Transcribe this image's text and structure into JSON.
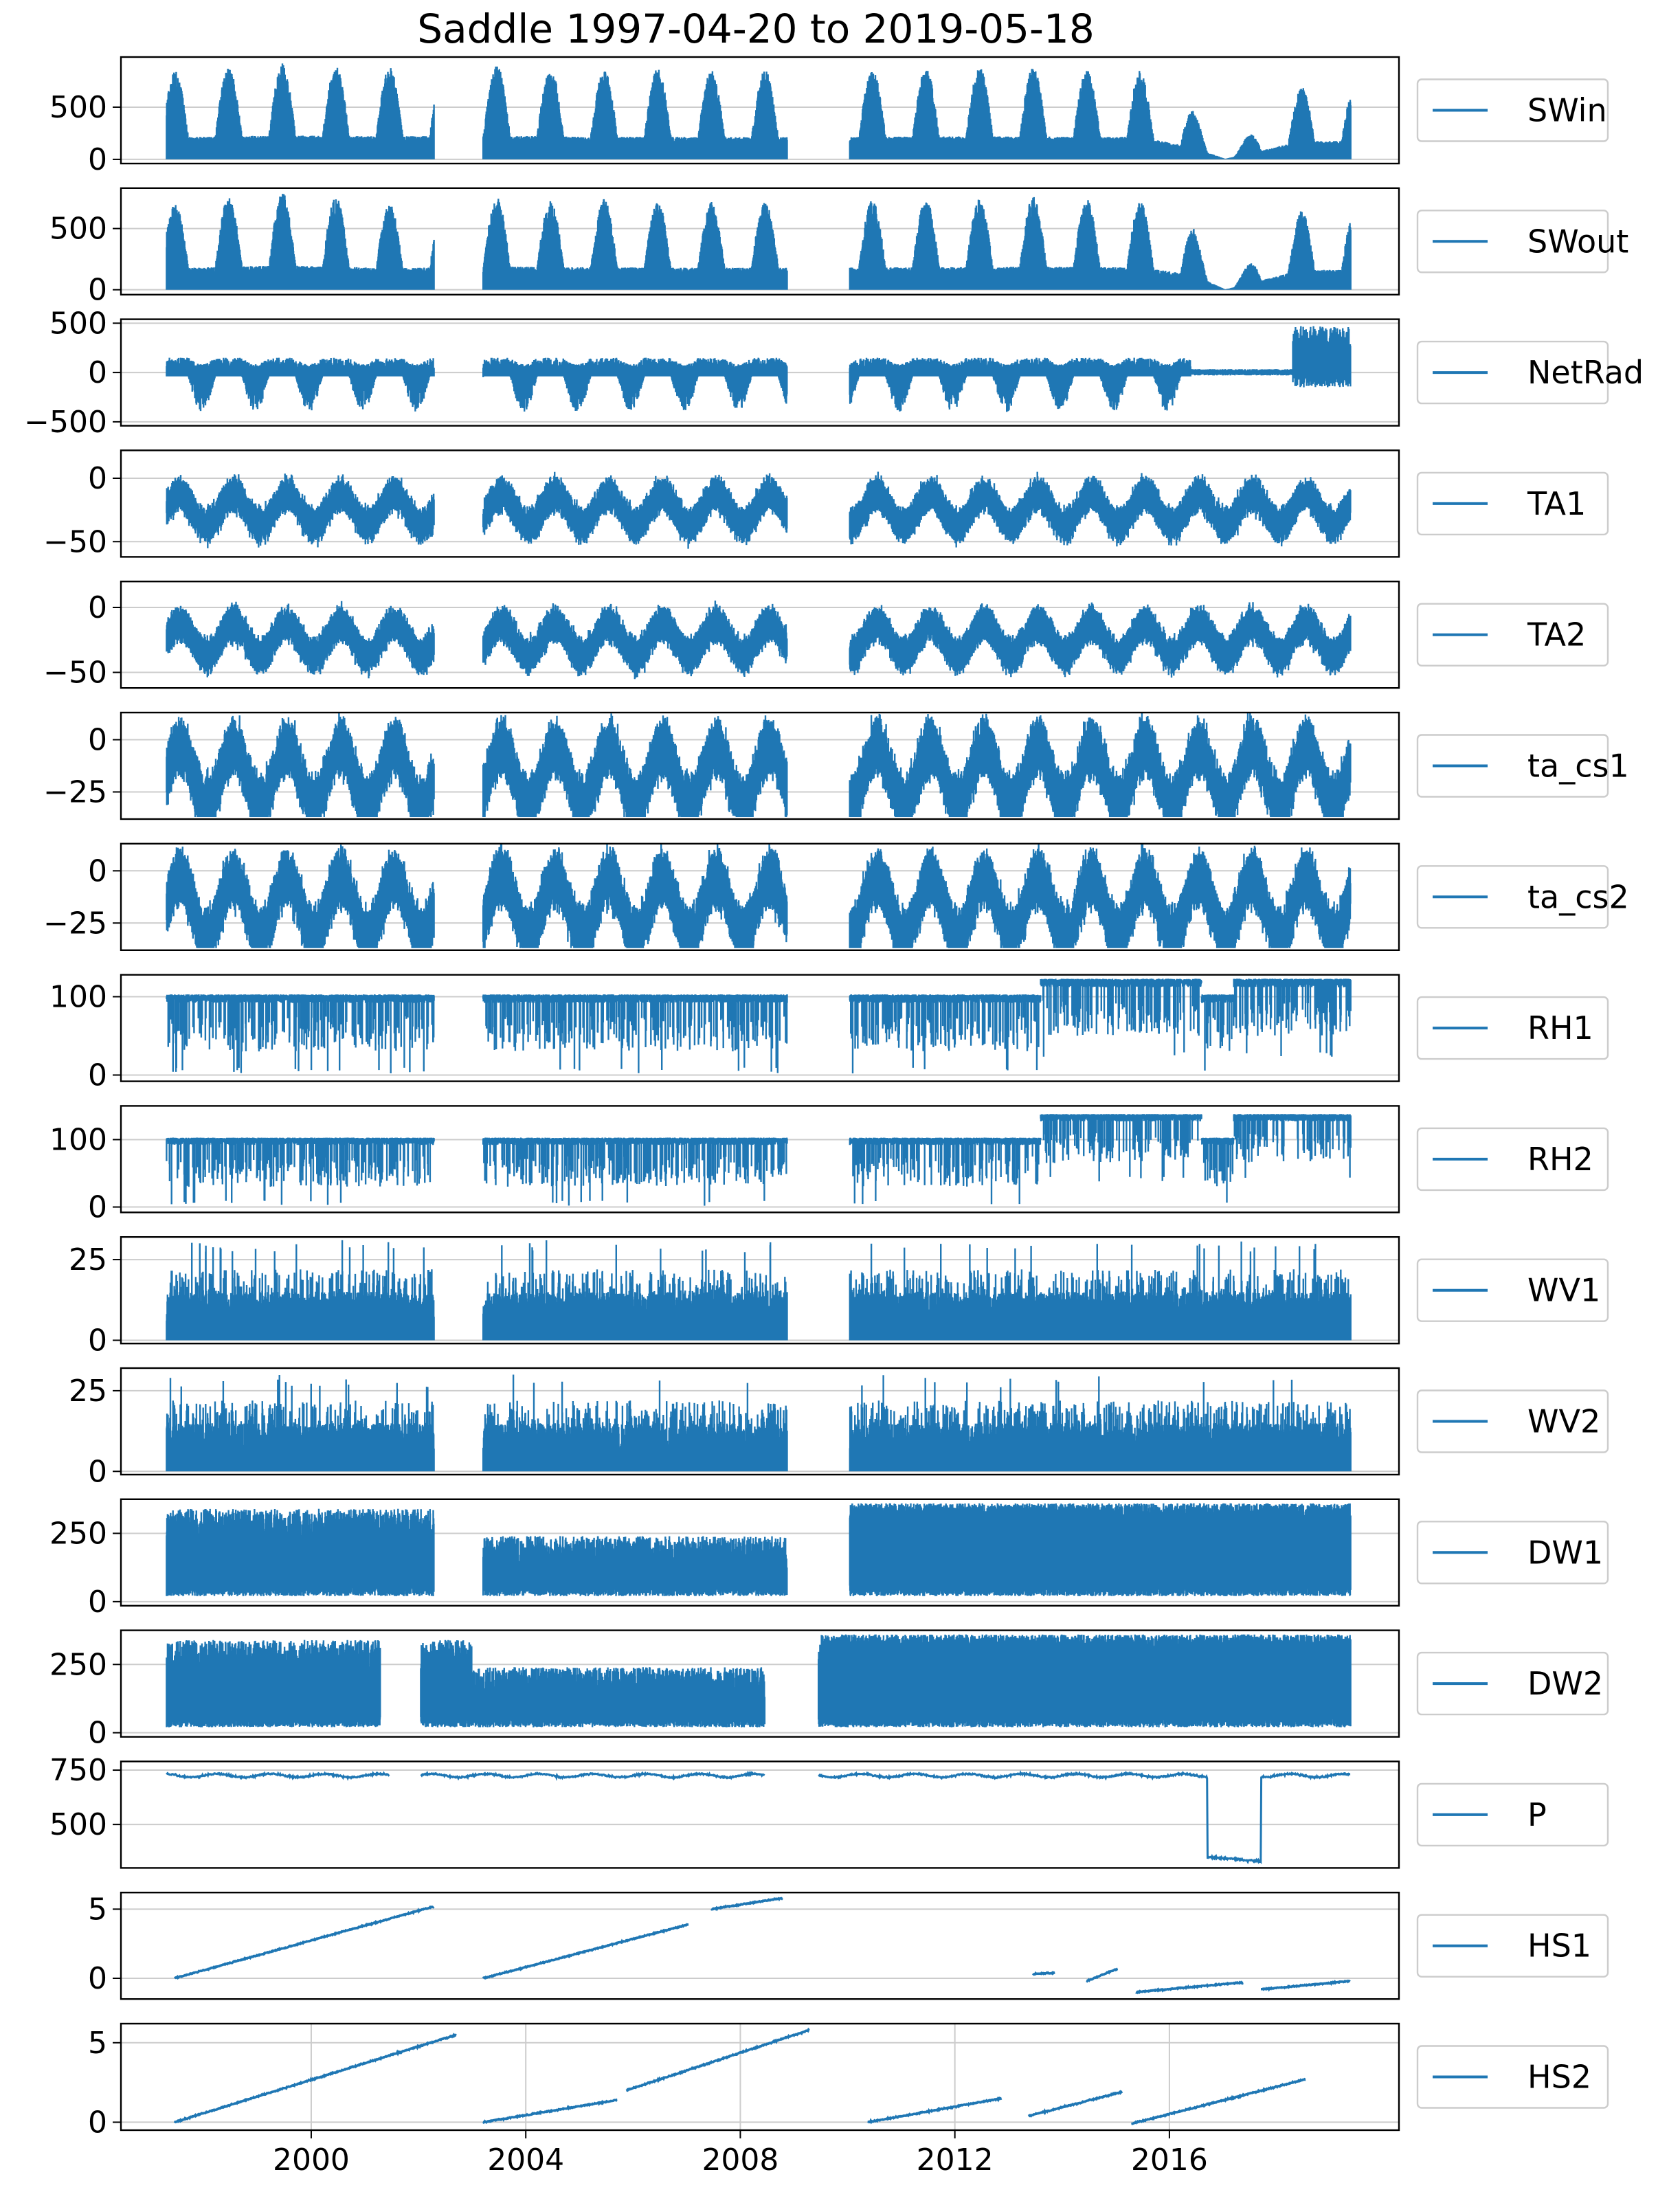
{
  "title": "Saddle 1997-04-20 to 2019-05-18",
  "colors": {
    "series": "#1f77b4",
    "grid": "#cccccc",
    "frame": "#000000",
    "legend_border": "#cccccc"
  },
  "chart_data": {
    "type": "line",
    "title": "Saddle 1997-04-20 to 2019-05-18",
    "x_axis": {
      "type": "date",
      "range": [
        "1997-04-20",
        "2019-05-18"
      ],
      "ticks": [
        "2000",
        "2004",
        "2008",
        "2012",
        "2016"
      ],
      "shown_on": "bottom panel only"
    },
    "grid": "horizontal on all panels; vertical year grid on bottom panel",
    "legend_placement": "right of each panel",
    "panels": [
      {
        "name": "SWin",
        "ylim": [
          -40,
          980
        ],
        "yticks": [
          "0",
          "500"
        ],
        "data_gaps": [
          [
            "2002-04",
            "2003-03"
          ],
          [
            "2008-11",
            "2010-01"
          ]
        ],
        "envelope": [
          [
            "1997-06",
            850
          ],
          [
            "1998-06",
            880
          ],
          [
            "1999-06",
            920
          ],
          [
            "2000-06",
            900
          ],
          [
            "2001-06",
            880
          ],
          [
            "2003-06",
            920
          ],
          [
            "2004-06",
            880
          ],
          [
            "2005-06",
            860
          ],
          [
            "2006-06",
            870
          ],
          [
            "2007-06",
            850
          ],
          [
            "2010-06",
            860
          ],
          [
            "2011-06",
            880
          ],
          [
            "2012-06",
            880
          ],
          [
            "2013-06",
            880
          ],
          [
            "2014-06",
            860
          ],
          [
            "2015-06",
            860
          ],
          [
            "2016-06",
            460
          ],
          [
            "2017-01",
            20
          ],
          [
            "2018-06",
            700
          ]
        ]
      },
      {
        "name": "SWout",
        "ylim": [
          -40,
          830
        ],
        "yticks": [
          "0",
          "500"
        ],
        "data_gaps": [
          [
            "2002-04",
            "2003-03"
          ],
          [
            "2008-11",
            "2010-01"
          ]
        ],
        "envelope": [
          [
            "1997-06",
            700
          ],
          [
            "1998-06",
            760
          ],
          [
            "1999-06",
            800
          ],
          [
            "2000-06",
            760
          ],
          [
            "2001-06",
            700
          ],
          [
            "2003-06",
            770
          ],
          [
            "2004-06",
            730
          ],
          [
            "2005-06",
            740
          ],
          [
            "2006-06",
            720
          ],
          [
            "2007-06",
            720
          ],
          [
            "2010-06",
            730
          ],
          [
            "2011-06",
            740
          ],
          [
            "2012-06",
            740
          ],
          [
            "2013-06",
            760
          ],
          [
            "2014-06",
            740
          ],
          [
            "2015-06",
            730
          ],
          [
            "2016-06",
            500
          ],
          [
            "2017-01",
            10
          ],
          [
            "2018-06",
            650
          ]
        ]
      },
      {
        "name": "NetRad",
        "ylim": [
          -540,
          540
        ],
        "yticks": [
          "500",
          "0",
          "−500"
        ],
        "data_gaps": [
          [
            "2002-04",
            "2003-03"
          ],
          [
            "2008-11",
            "2010-01"
          ]
        ],
        "range_hint": {
          "typical_min": -400,
          "typical_max": 150,
          "late_max": 470
        }
      },
      {
        "name": "TA1",
        "ylim": [
          -62,
          22
        ],
        "yticks": [
          "0",
          "−50"
        ],
        "data_gaps": [
          [
            "2002-04",
            "2003-03"
          ],
          [
            "2008-11",
            "2010-01"
          ]
        ],
        "seasonal": {
          "summer_high": -8,
          "winter_low": -42
        }
      },
      {
        "name": "TA2",
        "ylim": [
          -62,
          20
        ],
        "yticks": [
          "0",
          "−50"
        ],
        "data_gaps": [
          [
            "2002-04",
            "2003-03"
          ],
          [
            "2008-11",
            "2010-01"
          ]
        ],
        "seasonal": {
          "summer_high": -8,
          "winter_low": -42
        }
      },
      {
        "name": "ta_cs1",
        "ylim": [
          -38,
          13
        ],
        "yticks": [
          "0",
          "−25"
        ],
        "data_gaps": [
          [
            "2002-04",
            "2003-03"
          ],
          [
            "2008-11",
            "2010-01"
          ]
        ],
        "seasonal": {
          "summer_high": 2,
          "winter_low": -37
        }
      },
      {
        "name": "ta_cs2",
        "ylim": [
          -38,
          13
        ],
        "yticks": [
          "0",
          "−25"
        ],
        "data_gaps": [
          [
            "2002-04",
            "2003-03"
          ],
          [
            "2008-11",
            "2010-01"
          ]
        ],
        "seasonal": {
          "summer_high": 2,
          "winter_low": -37
        }
      },
      {
        "name": "RH1",
        "ylim": [
          -8,
          128
        ],
        "yticks": [
          "100",
          "0"
        ],
        "data_gaps": [
          [
            "2002-04",
            "2003-03"
          ],
          [
            "2008-11",
            "2010-01"
          ]
        ],
        "baseline": 100,
        "late_baseline": 120
      },
      {
        "name": "RH2",
        "ylim": [
          -8,
          150
        ],
        "yticks": [
          "100",
          "0"
        ],
        "data_gaps": [
          [
            "2002-04",
            "2003-03"
          ],
          [
            "2008-11",
            "2010-01"
          ]
        ],
        "baseline": 100,
        "late_baseline": 135
      },
      {
        "name": "WV1",
        "ylim": [
          -1,
          32
        ],
        "yticks": [
          "25",
          "0"
        ],
        "data_gaps": [
          [
            "2002-04",
            "2003-03"
          ],
          [
            "2008-11",
            "2010-01"
          ]
        ],
        "typical_max": 20,
        "peak": 31
      },
      {
        "name": "WV2",
        "ylim": [
          -1,
          32
        ],
        "yticks": [
          "25",
          "0"
        ],
        "data_gaps": [
          [
            "2002-04",
            "2003-03"
          ],
          [
            "2008-11",
            "2010-01"
          ]
        ],
        "typical_max": 20,
        "peak": 30
      },
      {
        "name": "DW1",
        "ylim": [
          -15,
          375
        ],
        "yticks": [
          "250",
          "0"
        ],
        "data_gaps": [
          [
            "2002-04",
            "2003-03"
          ],
          [
            "2008-11",
            "2010-01"
          ]
        ],
        "range": [
          20,
          360
        ]
      },
      {
        "name": "DW2",
        "ylim": [
          -15,
          375
        ],
        "yticks": [
          "250",
          "0"
        ],
        "data_gaps": [
          [
            "2001-04",
            "2002-01"
          ],
          [
            "2008-06",
            "2009-06"
          ]
        ],
        "range": [
          20,
          360
        ]
      },
      {
        "name": "P",
        "ylim": [
          300,
          790
        ],
        "yticks": [
          "750",
          "500"
        ],
        "data_gaps": [
          [
            "2001-06",
            "2002-01"
          ],
          [
            "2008-06",
            "2009-06"
          ]
        ],
        "baseline": 725,
        "dropout": {
          "from": "2016-09",
          "to": "2017-09",
          "value": 350
        }
      },
      {
        "name": "HS1",
        "ylim": [
          -1.5,
          6.2
        ],
        "yticks": [
          "5",
          "0"
        ],
        "segments": [
          [
            [
              "1997-06",
              0.0
            ],
            [
              "2002-04",
              5.2
            ]
          ],
          [
            [
              "2003-03",
              0.0
            ],
            [
              "2007-01",
              3.9
            ]
          ],
          [
            [
              "2007-06",
              5.0
            ],
            [
              "2008-10",
              5.8
            ]
          ],
          [
            [
              "2013-06",
              0.3
            ],
            [
              "2013-11",
              0.4
            ]
          ],
          [
            [
              "2014-06",
              -0.2
            ],
            [
              "2015-01",
              0.7
            ]
          ],
          [
            [
              "2015-05",
              -1.0
            ],
            [
              "2017-05",
              -0.3
            ]
          ],
          [
            [
              "2017-09",
              -0.8
            ],
            [
              "2019-05",
              -0.2
            ]
          ]
        ]
      },
      {
        "name": "HS2",
        "ylim": [
          -0.5,
          6.2
        ],
        "yticks": [
          "5",
          "0"
        ],
        "segments": [
          [
            [
              "1997-06",
              0.0
            ],
            [
              "2002-09",
              5.5
            ]
          ],
          [
            [
              "2003-03",
              0.0
            ],
            [
              "2005-09",
              1.4
            ]
          ],
          [
            [
              "2005-11",
              2.0
            ],
            [
              "2009-04",
              5.8
            ]
          ],
          [
            [
              "2010-05",
              0.0
            ],
            [
              "2012-11",
              1.5
            ]
          ],
          [
            [
              "2013-05",
              0.4
            ],
            [
              "2015-02",
              1.9
            ]
          ],
          [
            [
              "2015-04",
              -0.1
            ],
            [
              "2018-07",
              2.7
            ]
          ]
        ]
      }
    ]
  }
}
